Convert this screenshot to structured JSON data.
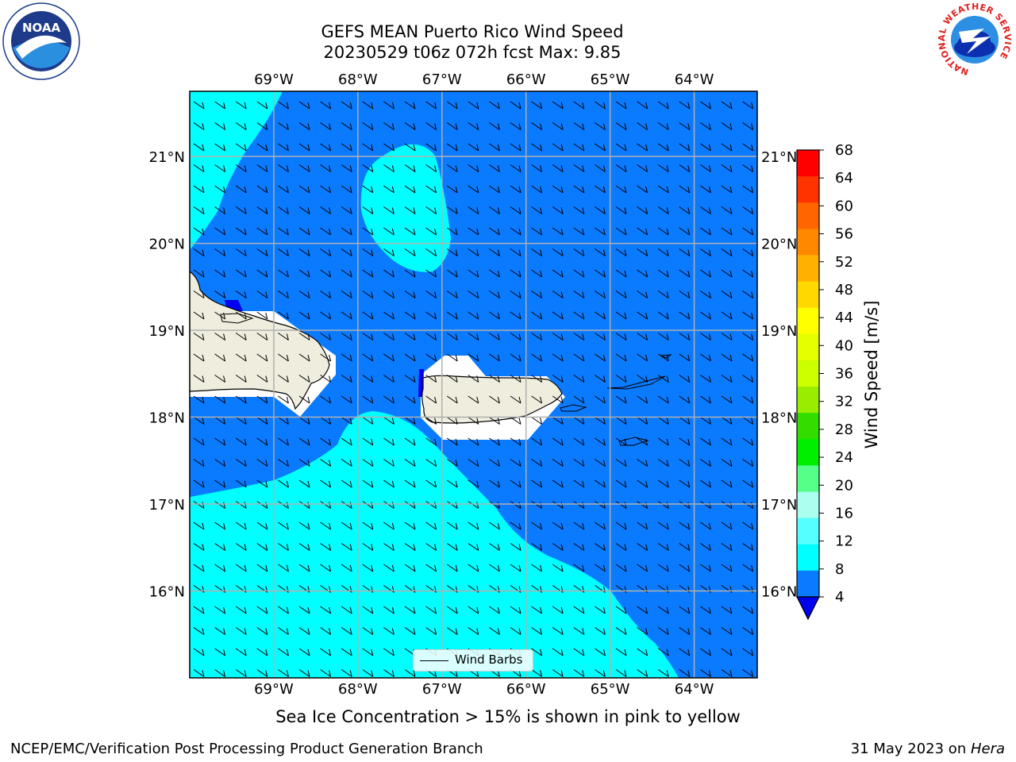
{
  "header": {
    "title_line1": "GEFS MEAN Puerto Rico Wind Speed",
    "title_line2": "20230529 t06z 072h fcst   Max: 9.85"
  },
  "logos": {
    "left": "NOAA",
    "right_ring": "NATIONAL WEATHER SERVICE"
  },
  "map": {
    "lon_labels": [
      "69°W",
      "68°W",
      "67°W",
      "66°W",
      "65°W",
      "64°W"
    ],
    "lat_labels": [
      "21°N",
      "20°N",
      "19°N",
      "18°N",
      "17°N",
      "16°N"
    ],
    "lon_values": [
      -69,
      -68,
      -67,
      -66,
      -65,
      -64
    ],
    "lat_values": [
      21,
      20,
      19,
      18,
      17,
      16
    ],
    "extent": {
      "lon_min": -70.0,
      "lon_max": -63.25,
      "lat_min": 15.0,
      "lat_max": 21.75
    },
    "legend_label": "Wind Barbs",
    "colors": {
      "speed_4_8": "#0a7aff",
      "speed_8_12": "#00ffff",
      "land": "#efedde",
      "below_4": "#0000ee",
      "grid": "#b0b0b0"
    }
  },
  "colorbar": {
    "label": "Wind Speed [m/s]",
    "ticks": [
      "68",
      "64",
      "60",
      "56",
      "52",
      "48",
      "44",
      "40",
      "36",
      "32",
      "28",
      "24",
      "20",
      "16",
      "12",
      "8",
      "4"
    ],
    "bins": [
      {
        "color": "#ff0000"
      },
      {
        "color": "#ff3300"
      },
      {
        "color": "#ff6600"
      },
      {
        "color": "#ff8800"
      },
      {
        "color": "#ffb000"
      },
      {
        "color": "#ffd800"
      },
      {
        "color": "#ffff00"
      },
      {
        "color": "#e6ff00"
      },
      {
        "color": "#ccff00"
      },
      {
        "color": "#99ee00"
      },
      {
        "color": "#33dd00"
      },
      {
        "color": "#00ee00"
      },
      {
        "color": "#55ff88"
      },
      {
        "color": "#aaffee"
      },
      {
        "color": "#55ffff"
      },
      {
        "color": "#00ffff"
      },
      {
        "color": "#0a7aff"
      }
    ],
    "extend_color": "#0000ee"
  },
  "caption": "Sea Ice Concentration > 15% is shown in pink to yellow",
  "footer": {
    "left": "NCEP/EMC/Verification Post Processing Product Generation Branch",
    "right_date": "31 May 2023 on ",
    "right_host": "Hera"
  }
}
